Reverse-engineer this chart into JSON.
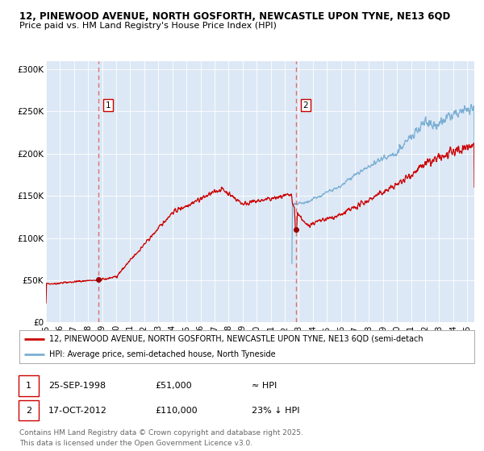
{
  "title_line1": "12, PINEWOOD AVENUE, NORTH GOSFORTH, NEWCASTLE UPON TYNE, NE13 6QD",
  "title_line2": "Price paid vs. HM Land Registry's House Price Index (HPI)",
  "background_color": "#ffffff",
  "plot_bg_color": "#dce8f5",
  "ylabel": "",
  "ylim": [
    0,
    310000
  ],
  "yticks": [
    0,
    50000,
    100000,
    150000,
    200000,
    250000,
    300000
  ],
  "ytick_labels": [
    "£0",
    "£50K",
    "£100K",
    "£150K",
    "£200K",
    "£250K",
    "£300K"
  ],
  "hpi_color": "#7bafd4",
  "price_color": "#cc0000",
  "vline_color": "#e06060",
  "marker_color": "#990000",
  "purchase1_date_num": 1998.73,
  "purchase1_price": 51000,
  "purchase2_date_num": 2012.79,
  "purchase2_price": 110000,
  "legend_label1": "12, PINEWOOD AVENUE, NORTH GOSFORTH, NEWCASTLE UPON TYNE, NE13 6QD (semi-detach",
  "legend_label2": "HPI: Average price, semi-detached house, North Tyneside",
  "annotation1_box": "1",
  "annotation2_box": "2",
  "table_row1": [
    "1",
    "25-SEP-1998",
    "£51,000",
    "≈ HPI"
  ],
  "table_row2": [
    "2",
    "17-OCT-2012",
    "£110,000",
    "23% ↓ HPI"
  ],
  "footnote": "Contains HM Land Registry data © Crown copyright and database right 2025.\nThis data is licensed under the Open Government Licence v3.0.",
  "xrange_start": 1995.0,
  "xrange_end": 2025.5
}
